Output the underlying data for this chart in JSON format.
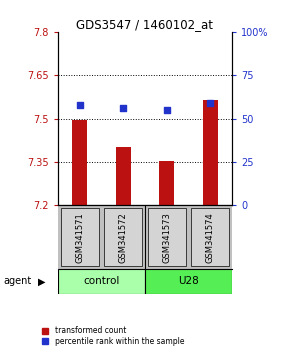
{
  "title": "GDS3547 / 1460102_at",
  "samples": [
    "GSM341571",
    "GSM341572",
    "GSM341573",
    "GSM341574"
  ],
  "bar_values": [
    7.495,
    7.4,
    7.355,
    7.565
  ],
  "pct_ranks": [
    58,
    56,
    55,
    59
  ],
  "ylim_left": [
    7.2,
    7.8
  ],
  "ylim_right": [
    0,
    100
  ],
  "yticks_left": [
    7.2,
    7.35,
    7.5,
    7.65,
    7.8
  ],
  "yticks_right": [
    0,
    25,
    50,
    75,
    100
  ],
  "ytick_labels_left": [
    "7.2",
    "7.35",
    "7.5",
    "7.65",
    "7.8"
  ],
  "ytick_labels_right": [
    "0",
    "25",
    "50",
    "75",
    "100%"
  ],
  "hlines": [
    7.35,
    7.5,
    7.65
  ],
  "bar_color": "#bb1111",
  "percentile_color": "#2233cc",
  "bar_width": 0.35,
  "control_color": "#aaffaa",
  "u28_color": "#55ee55",
  "sample_box_color": "#d0d0d0",
  "legend_bar_label": "transformed count",
  "legend_pct_label": "percentile rank within the sample"
}
